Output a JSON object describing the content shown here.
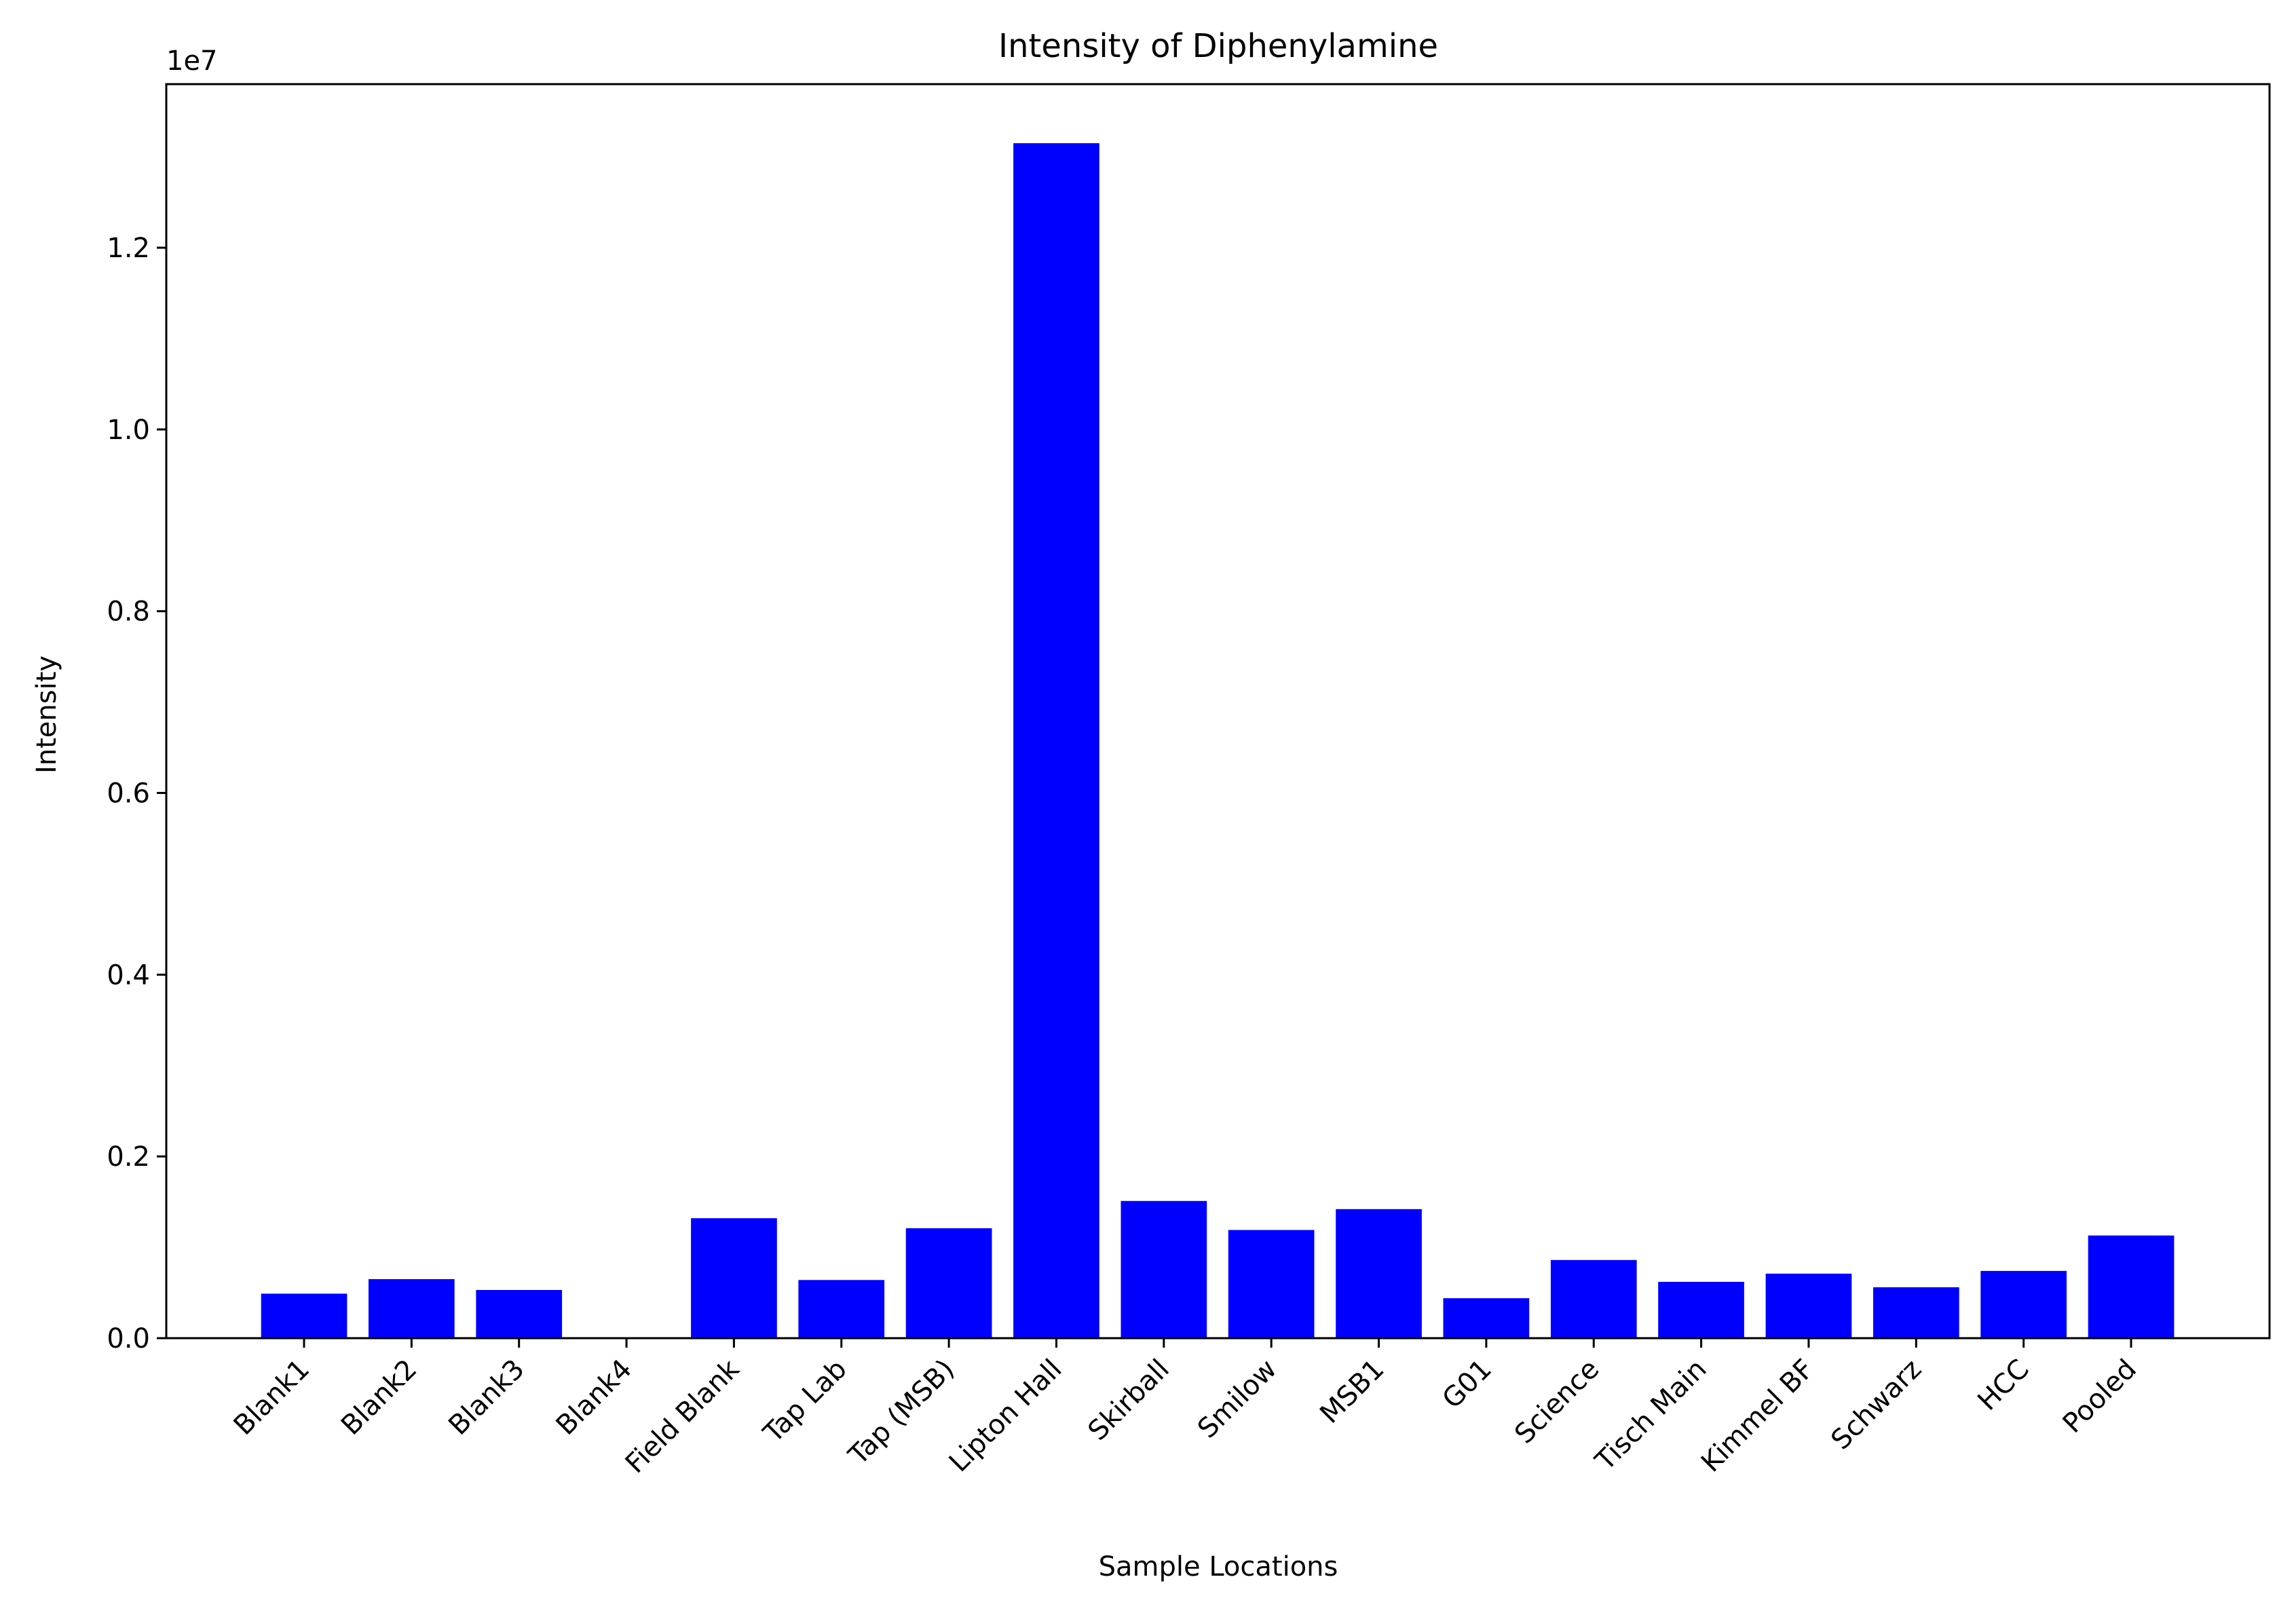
{
  "chart_data": {
    "type": "bar",
    "title": "Intensity of Diphenylamine",
    "xlabel": "Sample Locations",
    "ylabel": "Intensity",
    "y_scale_label": "1e7",
    "categories": [
      "Blank1",
      "Blank2",
      "Blank3",
      "Blank4",
      "Field Blank",
      "Tap Lab",
      "Tap (MSB)",
      "Lipton Hall",
      "Skirball",
      "Smilow",
      "MSB1",
      "G01",
      "Science",
      "Tisch Main",
      "Kimmel BF",
      "Schwarz",
      "HCC",
      "Pooled"
    ],
    "values": [
      490000,
      650000,
      530000,
      0,
      1320000,
      640000,
      1210000,
      13150000,
      1510000,
      1190000,
      1420000,
      440000,
      860000,
      620000,
      710000,
      560000,
      740000,
      1130000
    ],
    "ylim": [
      0,
      13800000
    ],
    "yticks": [
      0,
      2000000,
      4000000,
      6000000,
      8000000,
      10000000,
      12000000
    ],
    "ytick_labels": [
      "0.0",
      "0.2",
      "0.4",
      "0.6",
      "0.8",
      "1.0",
      "1.2"
    ],
    "bar_color": "#0000ff",
    "grid": false,
    "legend": false
  }
}
